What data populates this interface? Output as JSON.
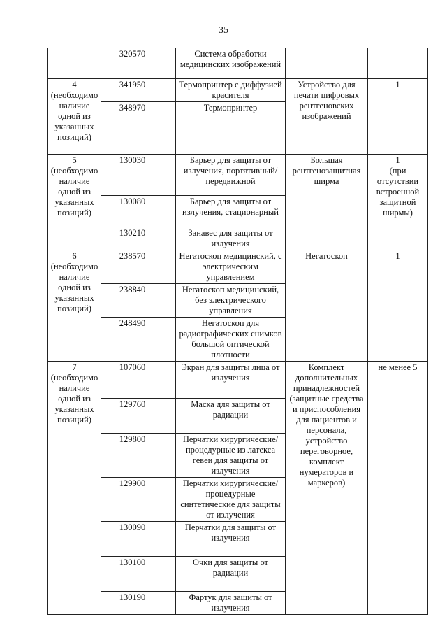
{
  "page_number": "35",
  "groups": [
    {
      "label": "",
      "category": "",
      "quantity": "",
      "items": [
        {
          "code": "320570",
          "name": "Система обработки медицинских изображений"
        }
      ]
    },
    {
      "label": "4\n(необходимо наличие одной из указанных позиций)",
      "category": "Устройство для печати цифровых рентгеновских изображений",
      "quantity": "1",
      "items": [
        {
          "code": "341950",
          "name": "Термопринтер с диффузией красителя"
        },
        {
          "code": "348970",
          "name": "Термопринтер"
        }
      ]
    },
    {
      "label": "5\n(необходимо наличие одной из указанных позиций)",
      "category": "Большая рентгенозащитная ширма",
      "quantity": "1\n(при отсутствии встроенной защитной ширмы)",
      "items": [
        {
          "code": "130030",
          "name": "Барьер для защиты от излучения, портативный/ передвижной"
        },
        {
          "code": "130080",
          "name": "Барьер для защиты от излучения, стационарный"
        },
        {
          "code": "130210",
          "name": "Занавес для защиты от излучения"
        }
      ]
    },
    {
      "label": "6\n(необходимо наличие одной из указанных позиций)",
      "category": "Негатоскоп",
      "quantity": "1",
      "items": [
        {
          "code": "238570",
          "name": "Негатоскоп медицинский, с электрическим управлением"
        },
        {
          "code": "238840",
          "name": "Негатоскоп медицинский, без электрического управления"
        },
        {
          "code": "248490",
          "name": "Негатоскоп для радиографических снимков большой оптической плотности"
        }
      ]
    },
    {
      "label": "7\n(необходимо наличие одной из указанных позиций)",
      "category": "Комплект дополнительных принадлежностей (защитные средства и приспособления для пациентов и персонала, устройство переговорное, комплект нумераторов и маркеров)",
      "quantity": "не менее 5",
      "items": [
        {
          "code": "107060",
          "name": "Экран для защиты лица от излучения"
        },
        {
          "code": "129760",
          "name": "Маска для защиты от радиации"
        },
        {
          "code": "129800",
          "name": "Перчатки хирургические/ процедурные из латекса гевеи для защиты от излучения"
        },
        {
          "code": "129900",
          "name": "Перчатки хирургические/ процедурные синтетические для защиты от излучения"
        },
        {
          "code": "130090",
          "name": "Перчатки для защиты от излучения"
        },
        {
          "code": "130100",
          "name": "Очки для защиты от радиации"
        },
        {
          "code": "130190",
          "name": "Фартук для защиты от излучения"
        }
      ]
    }
  ]
}
